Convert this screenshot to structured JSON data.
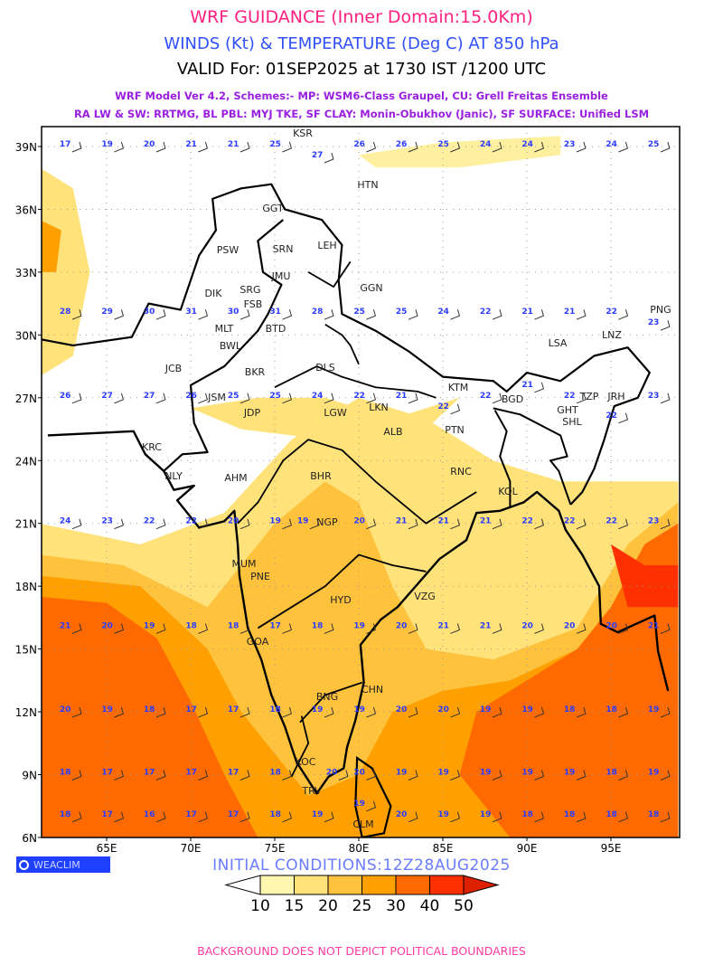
{
  "header": {
    "title": "WRF GUIDANCE (Inner Domain:15.0Km)",
    "subtitle": "WINDS (Kt) & TEMPERATURE (Deg C) AT 850 hPa",
    "valid": "VALID For: 01SEP2025 at 1730 IST /1200 UTC",
    "model_line1": "WRF Model Ver 4.2, Schemes:- MP: WSM6-Class Graupel, CU: Grell Freitas Ensemble",
    "model_line2": "RA LW & SW: RRTMG, BL PBL: MYJ TKE, SF CLAY: Monin-Obukhov (Janic), SF SURFACE: Unified LSM"
  },
  "axes": {
    "lat_labels": [
      "39N",
      "36N",
      "33N",
      "30N",
      "27N",
      "24N",
      "21N",
      "18N",
      "15N",
      "12N",
      "9N",
      "6N"
    ],
    "lon_labels": [
      "65E",
      "70E",
      "75E",
      "80E",
      "85E",
      "90E",
      "95E"
    ]
  },
  "stations": [
    "KSR",
    "HTN",
    "GGT",
    "LEH",
    "SRN",
    "PSW",
    "JMU",
    "DIK",
    "SRG",
    "FSB",
    "GGN",
    "MLT",
    "BTD",
    "BWL",
    "DLS",
    "LSA",
    "LNZ",
    "PNG",
    "JCB",
    "BKR",
    "KTM",
    "BGD",
    "GHT",
    "SHL",
    "TZP",
    "JRH",
    "JSM",
    "JDP",
    "LKN",
    "LGW",
    "ALB",
    "PTN",
    "KRC",
    "NLY",
    "AHM",
    "BHR",
    "RNC",
    "KOL",
    "NGP",
    "MUM",
    "PNE",
    "HYD",
    "VZG",
    "GOA",
    "CHN",
    "BNG",
    "KOC",
    "TRV",
    "CLM"
  ],
  "temp_rows": [
    [
      "17",
      "19",
      "20",
      "21",
      "21",
      "25",
      "27",
      "26",
      "26",
      "25",
      "24",
      "24",
      "23",
      "24",
      "25"
    ],
    [
      "28",
      "29",
      "30",
      "31",
      "30",
      "31",
      "28",
      "25",
      "25",
      "24",
      "22",
      "21",
      "21",
      "22",
      "23"
    ],
    [
      "26",
      "27",
      "27",
      "26",
      "25",
      "25",
      "24",
      "22",
      "21",
      "22",
      "22",
      "21",
      "22",
      "22",
      "23"
    ],
    [
      "24",
      "23",
      "22",
      "22",
      "20",
      "19",
      "19",
      "20",
      "21",
      "21",
      "21",
      "22",
      "22",
      "22",
      "23"
    ],
    [
      "21",
      "20",
      "19",
      "18",
      "18",
      "17",
      "18",
      "19",
      "20",
      "21",
      "21",
      "20",
      "20",
      "20",
      "21"
    ],
    [
      "20",
      "19",
      "18",
      "17",
      "17",
      "18",
      "19",
      "19",
      "20",
      "20",
      "19",
      "19",
      "18",
      "18",
      "19"
    ],
    [
      "18",
      "17",
      "17",
      "17",
      "17",
      "18",
      "20",
      "20",
      "19",
      "19",
      "19",
      "19",
      "19",
      "18",
      "19"
    ],
    [
      "18",
      "17",
      "16",
      "17",
      "17",
      "18",
      "19",
      "19",
      "20",
      "19",
      "19",
      "18",
      "18",
      "18",
      "18"
    ]
  ],
  "branding": "WEACLIM",
  "initial_conditions": "INITIAL CONDITIONS:12Z28AUG2025",
  "colorbar": {
    "labels": [
      "10",
      "15",
      "20",
      "25",
      "30",
      "40",
      "50"
    ],
    "colors": [
      "#ffffff",
      "#fff6b0",
      "#ffe27a",
      "#ffc23c",
      "#ffa000",
      "#ff6a00",
      "#ff3000",
      "#dd2000"
    ]
  },
  "footer": "BACKGROUND DOES NOT DEPICT POLITICAL BOUNDARIES"
}
